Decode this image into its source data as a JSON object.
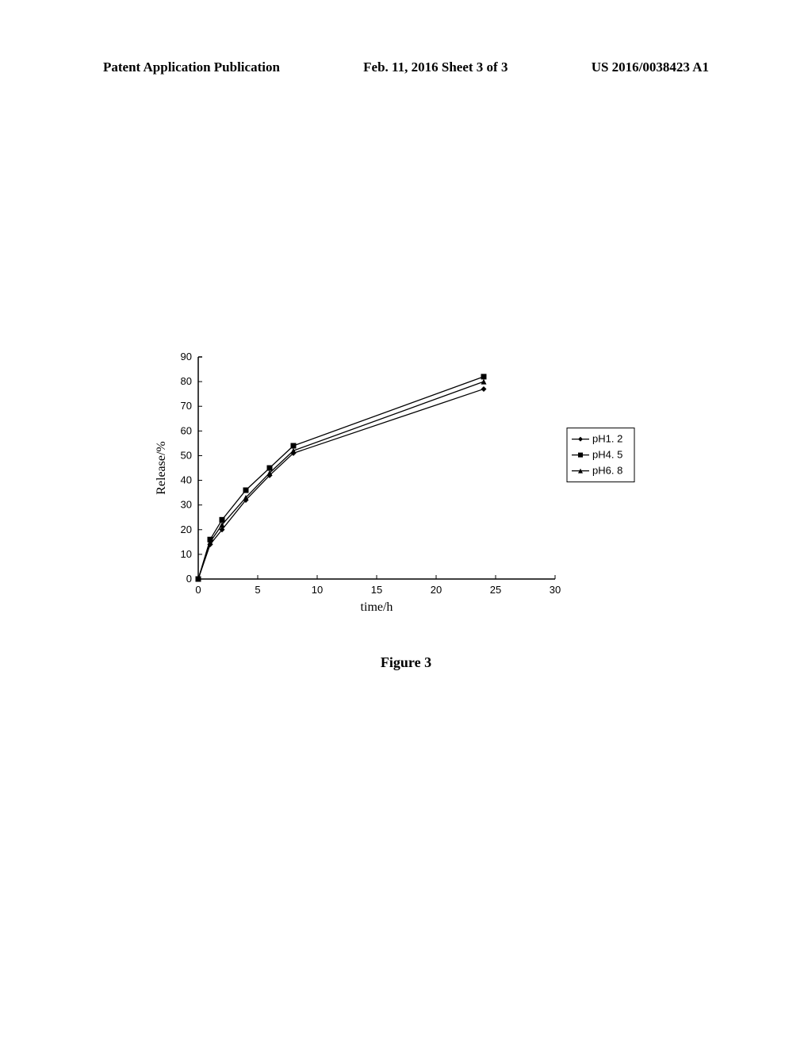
{
  "header": {
    "left": "Patent Application Publication",
    "center": "Feb. 11, 2016  Sheet 3 of 3",
    "right": "US 2016/0038423 A1"
  },
  "caption": "Figure 3",
  "chart": {
    "type": "line",
    "background_color": "#ffffff",
    "axis_color": "#000000",
    "text_color": "#000000",
    "xlabel": "time/h",
    "ylabel": "Release/%",
    "label_fontsize": 16,
    "tick_fontsize": 13,
    "xlim": [
      0,
      30
    ],
    "ylim": [
      0,
      90
    ],
    "xtick_step": 5,
    "ytick_step": 10,
    "line_width": 1.3,
    "marker_size": 7,
    "legend": {
      "position": "right",
      "border_color": "#000000",
      "bg_color": "#ffffff",
      "fontsize": 13
    },
    "series": [
      {
        "label": "pH1. 2",
        "marker": "diamond",
        "color": "#000000",
        "x": [
          0,
          1,
          2,
          4,
          6,
          8,
          24
        ],
        "y": [
          0,
          14,
          20,
          32,
          42,
          51,
          77
        ]
      },
      {
        "label": "pH4. 5",
        "marker": "square",
        "color": "#000000",
        "x": [
          0,
          1,
          2,
          4,
          6,
          8,
          24
        ],
        "y": [
          0,
          16,
          24,
          36,
          45,
          54,
          82
        ]
      },
      {
        "label": "pH6. 8",
        "marker": "triangle",
        "color": "#000000",
        "x": [
          0,
          1,
          2,
          4,
          6,
          8,
          24
        ],
        "y": [
          0,
          15,
          22,
          33,
          43,
          52,
          80
        ]
      }
    ]
  }
}
